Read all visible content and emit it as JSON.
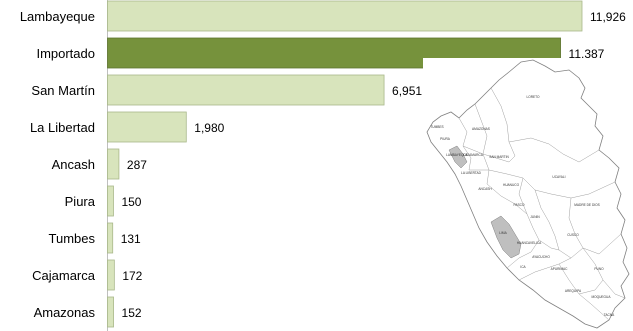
{
  "chart_data": {
    "type": "bar",
    "orientation": "horizontal",
    "categories": [
      "Lambayeque",
      "Importado",
      "San Martín",
      "La Libertad",
      "Ancash",
      "Piura",
      "Tumbes",
      "Cajamarca",
      "Amazonas"
    ],
    "values": [
      11926,
      11387,
      6951,
      1980,
      287,
      150,
      131,
      172,
      152
    ],
    "value_labels": [
      "11,926",
      "11,387",
      "6,951",
      "1,980",
      "287",
      "150",
      "131",
      "172",
      "152"
    ],
    "highlight_category": "Importado",
    "title": "",
    "xlabel": "",
    "ylabel": "",
    "xlim": [
      0,
      12000
    ],
    "grid": false,
    "legend": "none",
    "colors": {
      "bar": "#d8e4bc",
      "bar_border": "#a9b88a",
      "highlight": "#76923c",
      "highlight_border": "#5e7530",
      "axis": "#bfbfbf",
      "text": "#000000"
    }
  },
  "map": {
    "icon": "peru-regions-map-icon",
    "highlighted_regions": [
      "LAMBAYEQUE",
      "LIMA"
    ],
    "highlight_color": "#bfbfbf",
    "regions": [
      "TUMBES",
      "LORETO",
      "PIURA",
      "AMAZONAS",
      "LAMBAYEQUE",
      "CAJAMARCA",
      "SAN MARTIN",
      "LA LIBERTAD",
      "ANCASH",
      "HUANUCO",
      "UCAYALI",
      "PASCO",
      "JUNIN",
      "LIMA",
      "MADRE DE DIOS",
      "HUANCAVELICA",
      "CUSCO",
      "ICA",
      "AYACUCHO",
      "APURIMAC",
      "PUNO",
      "AREQUIPA",
      "MOQUEGUA",
      "TACNA"
    ]
  }
}
